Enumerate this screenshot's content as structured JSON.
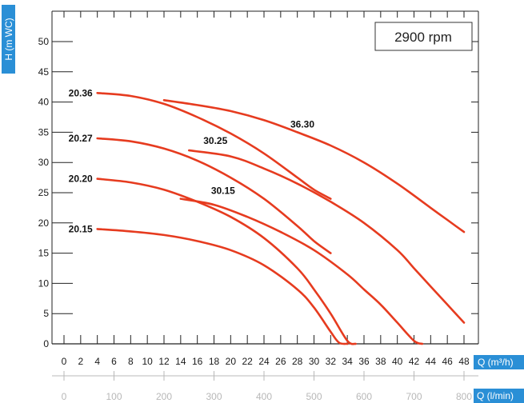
{
  "chart_data": {
    "type": "line",
    "title": "",
    "annotation": "2900 rpm",
    "ylabel": "H (m WC)",
    "xlabel": "Q (m³/h)",
    "x2label": "Q (l/min)",
    "xlim": [
      0,
      48
    ],
    "ylim": [
      0,
      52
    ],
    "xticks": [
      "0",
      "2",
      "4",
      "6",
      "8",
      "10",
      "12",
      "14",
      "16",
      "18",
      "20",
      "22",
      "24",
      "26",
      "28",
      "30",
      "32",
      "34",
      "36",
      "38",
      "40",
      "42",
      "44",
      "46",
      "48"
    ],
    "yticks": [
      "0",
      "5",
      "10",
      "15",
      "20",
      "25",
      "30",
      "35",
      "40",
      "45",
      "50"
    ],
    "x2ticks": [
      "0",
      "100",
      "200",
      "300",
      "400",
      "500",
      "600",
      "700",
      "800"
    ],
    "grid": false,
    "colors": {
      "curve": "#e63b1f",
      "axis_tag_bg": "#2a8fd6",
      "secondary_axis": "#b8b8b8",
      "frame": "#222222"
    },
    "series": [
      {
        "name": "20.15",
        "x": [
          4,
          8,
          12,
          16,
          20,
          24,
          28,
          30,
          32,
          33,
          34
        ],
        "y": [
          19,
          18.6,
          18,
          17,
          15.5,
          13,
          9,
          6,
          2,
          0.2,
          0
        ]
      },
      {
        "name": "20.20",
        "x": [
          4,
          8,
          12,
          16,
          20,
          24,
          28,
          30,
          32,
          34,
          35
        ],
        "y": [
          27.3,
          26.7,
          25.5,
          23.5,
          21,
          17.5,
          12.5,
          9,
          5,
          0.5,
          0
        ]
      },
      {
        "name": "20.27",
        "x": [
          4,
          8,
          12,
          16,
          20,
          24,
          28,
          30,
          32
        ],
        "y": [
          34,
          33.5,
          32.3,
          30.3,
          27.5,
          24,
          19.5,
          17,
          15
        ]
      },
      {
        "name": "20.36",
        "x": [
          4,
          8,
          12,
          16,
          20,
          24,
          28,
          30,
          32
        ],
        "y": [
          41.5,
          41,
          39.7,
          37.5,
          34.8,
          31.5,
          27.5,
          25.5,
          24
        ]
      },
      {
        "name": "30.15",
        "x": [
          14,
          18,
          22,
          26,
          30,
          34,
          36,
          38,
          40,
          42,
          43
        ],
        "y": [
          24,
          23,
          21,
          18.5,
          15.5,
          11.5,
          9,
          6.5,
          3.5,
          0.5,
          0
        ]
      },
      {
        "name": "30.25",
        "x": [
          15,
          20,
          24,
          28,
          32,
          36,
          40,
          42,
          44,
          46,
          48
        ],
        "y": [
          32,
          31,
          29,
          26.5,
          23.5,
          20,
          15.5,
          12.5,
          9.5,
          6.5,
          3.5
        ]
      },
      {
        "name": "36.30",
        "x": [
          12,
          16,
          20,
          24,
          28,
          32,
          36,
          40,
          44,
          46,
          48
        ],
        "y": [
          40.3,
          39.5,
          38.5,
          37,
          35,
          32.8,
          30,
          26.5,
          22.5,
          20.5,
          18.5
        ]
      }
    ],
    "legend": "inline labels at curve starts"
  }
}
